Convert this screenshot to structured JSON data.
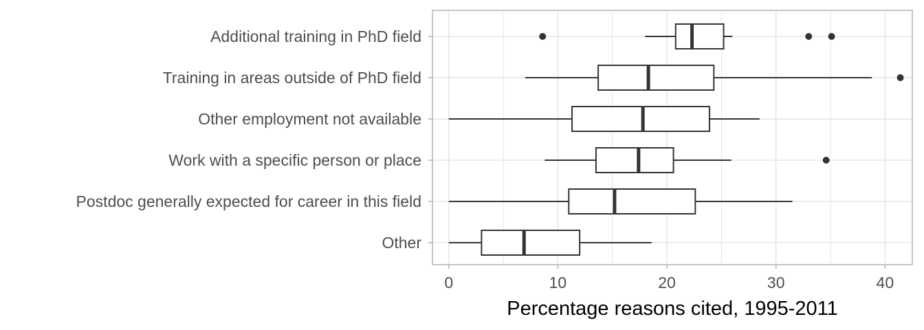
{
  "chart_data": {
    "type": "boxplot",
    "orientation": "horizontal",
    "title": "",
    "xlabel": "Percentage reasons cited, 1995-2011",
    "ylabel": "",
    "xlim": [
      -1.5,
      42.5
    ],
    "x_ticks": [
      0,
      10,
      20,
      30,
      40
    ],
    "grid": true,
    "legend": "none",
    "categories": [
      "Additional training in PhD field",
      "Training in areas outside of PhD field",
      "Other employment not available",
      "Work with a specific person or place",
      "Postdoc generally expected for career in this field",
      "Other"
    ],
    "boxes": [
      {
        "category": "Additional training in PhD field",
        "whisker_low": 18.0,
        "q1": 20.8,
        "median": 22.3,
        "q3": 25.2,
        "whisker_high": 26.0,
        "outliers": [
          8.6,
          33.0,
          35.1
        ]
      },
      {
        "category": "Training in areas outside of PhD field",
        "whisker_low": 7.0,
        "q1": 13.7,
        "median": 18.3,
        "q3": 24.3,
        "whisker_high": 38.8,
        "outliers": [
          41.4
        ]
      },
      {
        "category": "Other employment not available",
        "whisker_low": 0.0,
        "q1": 11.3,
        "median": 17.8,
        "q3": 23.9,
        "whisker_high": 28.5,
        "outliers": []
      },
      {
        "category": "Work with a specific person or place",
        "whisker_low": 8.8,
        "q1": 13.5,
        "median": 17.4,
        "q3": 20.6,
        "whisker_high": 25.9,
        "outliers": [
          34.6
        ]
      },
      {
        "category": "Postdoc generally expected for career in this field",
        "whisker_low": 0.0,
        "q1": 11.0,
        "median": 15.2,
        "q3": 22.6,
        "whisker_high": 31.5,
        "outliers": []
      },
      {
        "category": "Other",
        "whisker_low": 0.0,
        "q1": 3.0,
        "median": 6.9,
        "q3": 12.0,
        "whisker_high": 18.6,
        "outliers": []
      }
    ],
    "colors": {
      "box_line": "#333333",
      "grid": "#e0e0e0",
      "panel_border": "#b3b3b3",
      "point": "#333333"
    }
  }
}
